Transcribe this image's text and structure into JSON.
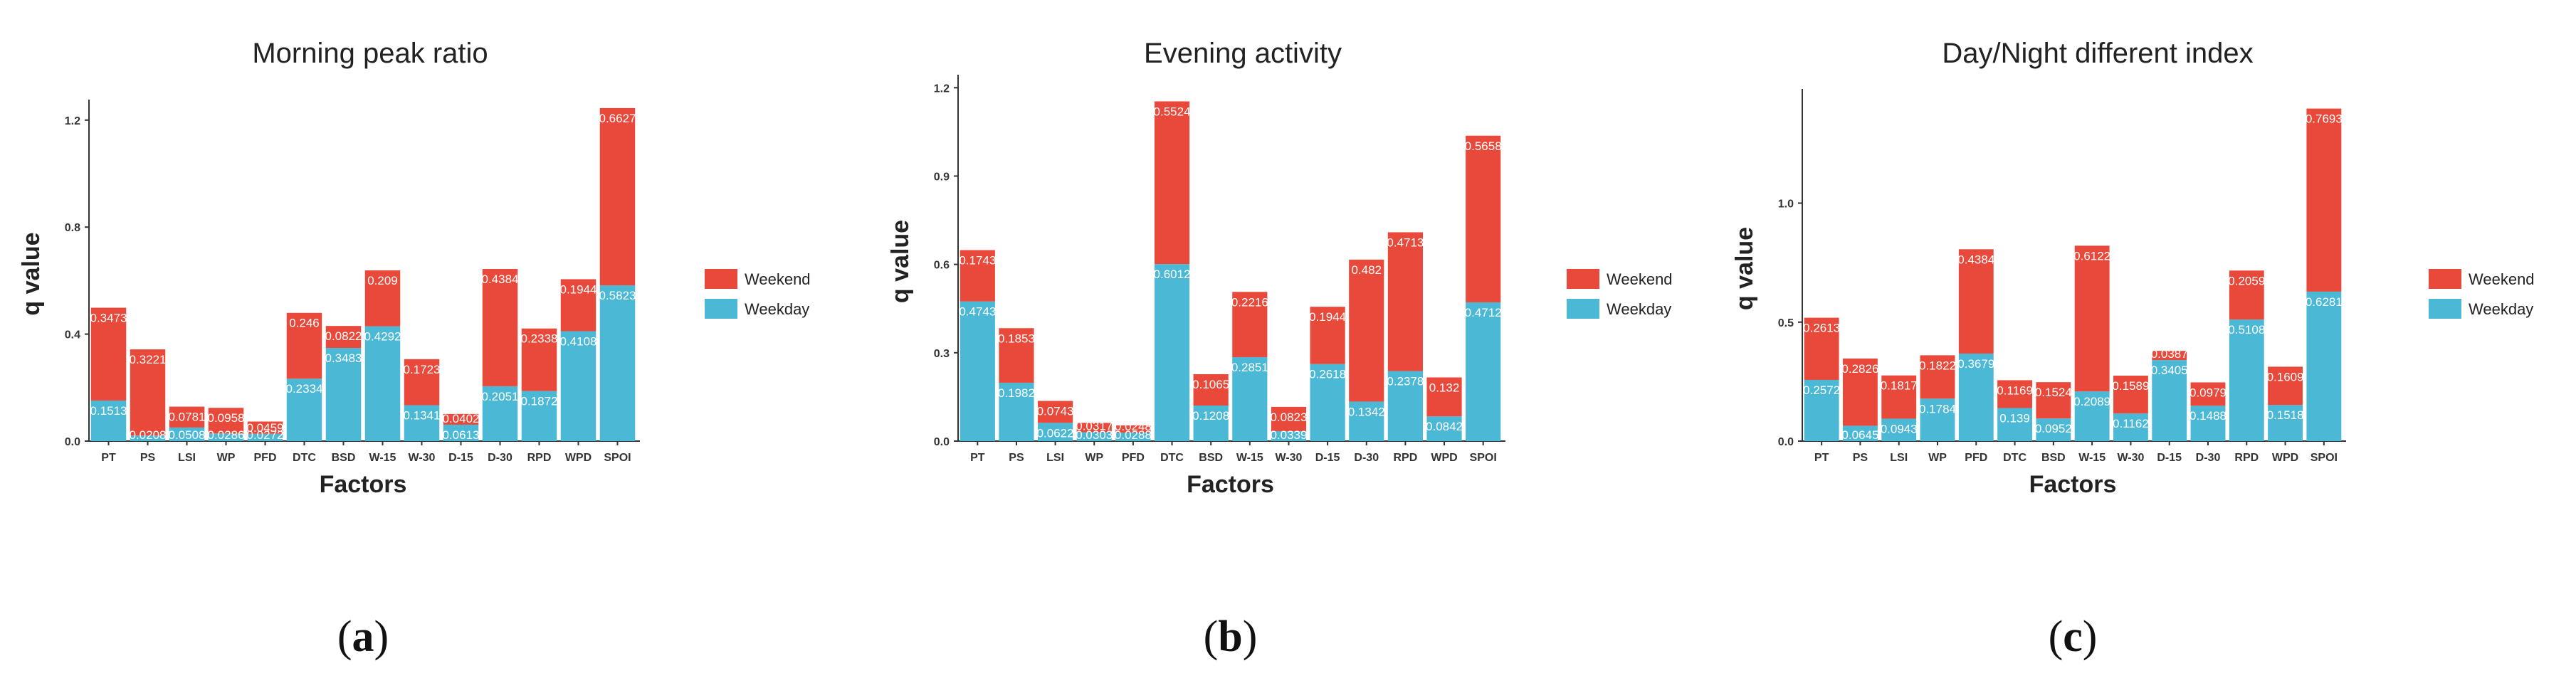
{
  "colors": {
    "Weekday": "#4bb8d6",
    "Weekend": "#e8493a"
  },
  "chart_data": [
    {
      "type": "bar",
      "stacked": true,
      "panel_label": "(a)",
      "caption_letter": "a",
      "title": "Morning peak ratio",
      "xlabel": "Factors",
      "ylabel": "q value",
      "ylim": [
        0,
        1.25
      ],
      "yticks": [
        0.0,
        0.4,
        0.8,
        1.2
      ],
      "yticklabels": [
        "0.0",
        "0.4",
        "0.8",
        "1.2"
      ],
      "categories": [
        "PT",
        "PS",
        "LSI",
        "WP",
        "PFD",
        "DTC",
        "BSD",
        "W-15",
        "W-30",
        "D-15",
        "D-30",
        "RPD",
        "WPD",
        "SPOI"
      ],
      "legend": [
        "Weekend",
        "Weekday"
      ],
      "series": [
        {
          "name": "Weekday",
          "values": [
            0.1513,
            0.0208,
            0.0508,
            0.0286,
            0.0272,
            0.2334,
            0.3483,
            0.4292,
            0.1341,
            0.0613,
            0.2051,
            0.1872,
            0.4108,
            0.5823
          ],
          "labels": [
            "0.1513",
            "0.0208",
            "0.0508",
            "0.0286",
            "0.0272",
            "0.2334",
            "0.3483",
            "0.4292",
            "0.1341",
            "0.0613",
            "0.2051",
            "0.1872",
            "0.4108",
            "0.5823"
          ]
        },
        {
          "name": "Weekend",
          "values": [
            0.3473,
            0.3221,
            0.0781,
            0.0958,
            0.0459,
            0.246,
            0.0822,
            0.209,
            0.1723,
            0.0402,
            0.4384,
            0.2338,
            0.1944,
            0.6627
          ],
          "labels": [
            "0.3473",
            "0.3221",
            "0.0781",
            "0.0958",
            "0.0459",
            "0.246",
            "0.0822",
            "0.209",
            "0.1723",
            "0.0402",
            "0.4384",
            "0.2338",
            "0.1944",
            "0.6627"
          ]
        }
      ]
    },
    {
      "type": "bar",
      "stacked": true,
      "panel_label": "(b)",
      "caption_letter": "b",
      "title": "Evening activity",
      "xlabel": "Factors",
      "ylabel": "q value",
      "ylim": [
        0,
        1.22
      ],
      "yticks": [
        0.0,
        0.3,
        0.6,
        0.9,
        1.2
      ],
      "yticklabels": [
        "0.0",
        "0.3",
        "0.6",
        "0.9",
        "1.2"
      ],
      "categories": [
        "PT",
        "PS",
        "LSI",
        "WP",
        "PFD",
        "DTC",
        "BSD",
        "W-15",
        "W-30",
        "D-15",
        "D-30",
        "RPD",
        "WPD",
        "SPOI"
      ],
      "legend": [
        "Weekend",
        "Weekday"
      ],
      "series": [
        {
          "name": "Weekday",
          "values": [
            0.4743,
            0.1982,
            0.0622,
            0.0303,
            0.0288,
            0.6012,
            0.1208,
            0.2851,
            0.0339,
            0.2618,
            0.1342,
            0.2378,
            0.0842,
            0.4712
          ],
          "labels": [
            "0.4743",
            "0.1982",
            "0.0622",
            "0.0303",
            "0.0288",
            "0.6012",
            "0.1208",
            "0.2851",
            "0.0339",
            "0.2618",
            "0.1342",
            "0.2378",
            "0.0842",
            "0.4712"
          ]
        },
        {
          "name": "Weekend",
          "values": [
            0.1743,
            0.1853,
            0.0743,
            0.0317,
            0.0248,
            0.5524,
            0.1065,
            0.2216,
            0.0823,
            0.1944,
            0.482,
            0.4713,
            0.132,
            0.5658
          ],
          "labels": [
            "0.1743",
            "0.1853",
            "0.0743",
            "0.0317",
            "0.0248",
            "0.5524",
            "0.1065",
            "0.2216",
            "0.0823",
            "0.1944",
            "0.482",
            "0.4713",
            "0.132",
            "0.5658"
          ]
        }
      ]
    },
    {
      "type": "bar",
      "stacked": true,
      "panel_label": "(c)",
      "caption_letter": "c",
      "title": "Day/Night different index",
      "xlabel": "Factors",
      "ylabel": "q value",
      "ylim": [
        0,
        1.45
      ],
      "yticks": [
        0.0,
        0.5,
        1.0
      ],
      "yticklabels": [
        "0.0",
        "0.5",
        "1.0"
      ],
      "categories": [
        "PT",
        "PS",
        "LSI",
        "WP",
        "PFD",
        "DTC",
        "BSD",
        "W-15",
        "W-30",
        "D-15",
        "D-30",
        "RPD",
        "WPD",
        "SPOI"
      ],
      "legend": [
        "Weekend",
        "Weekday"
      ],
      "series": [
        {
          "name": "Weekday",
          "values": [
            0.2572,
            0.0645,
            0.0943,
            0.1784,
            0.3679,
            0.139,
            0.0952,
            0.2089,
            0.1162,
            0.3405,
            0.1488,
            0.5108,
            0.1518,
            0.6281
          ],
          "labels": [
            "0.2572",
            "0.0645",
            "0.0943",
            "0.1784",
            "0.3679",
            "0.139",
            "0.0952",
            "0.2089",
            "0.1162",
            "0.3405",
            "0.1488",
            "0.5108",
            "0.1518",
            "0.6281"
          ]
        },
        {
          "name": "Weekend",
          "values": [
            0.2613,
            0.2826,
            0.1817,
            0.1822,
            0.4384,
            0.1169,
            0.1524,
            0.6122,
            0.1589,
            0.0387,
            0.0979,
            0.2059,
            0.1609,
            0.7693
          ],
          "labels": [
            "0.2613",
            "0.2826",
            "0.1817",
            "0.1822",
            "0.4384",
            "0.1169",
            "0.1524",
            "0.6122",
            "0.1589",
            "0.0387",
            "0.0979",
            "0.2059",
            "0.1609",
            "0.7693"
          ]
        }
      ]
    }
  ]
}
